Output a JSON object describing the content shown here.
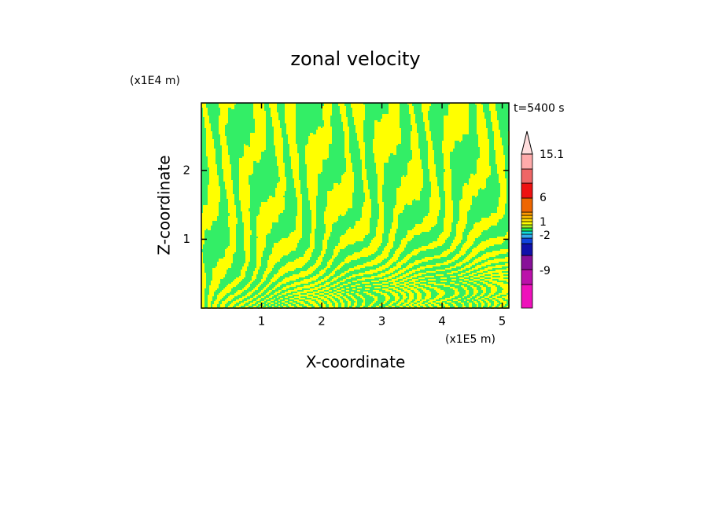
{
  "chart_data": {
    "type": "contour",
    "title": "zonal velocity",
    "time_label": "t=5400 s",
    "x_label": "X-coordinate",
    "y_label": "Z-coordinate",
    "x_unit": "(x1E5 m)",
    "y_unit": "(x1E4 m)",
    "xlim": [
      0,
      5.11
    ],
    "ylim": [
      0,
      2.98
    ],
    "xticks": [
      1,
      2,
      3,
      4,
      5
    ],
    "yticks": [
      1,
      2
    ],
    "field_colors": [
      "#33ee66",
      "#ffff00"
    ],
    "colorbar": {
      "colors": [
        "#ee11bb",
        "#bb11aa",
        "#881199",
        "#1111aa",
        "#1144dd",
        "#33aaee",
        "#11dddd",
        "#22ee55",
        "#aaee22",
        "#ffff00",
        "#ffdd00",
        "#ffbb00",
        "#ff9900",
        "#ee6600",
        "#ee1111",
        "#ee6666",
        "#ffaaaa",
        "#ffdddd"
      ],
      "ticks": [
        15.1,
        6,
        1,
        -2,
        -9
      ]
    }
  }
}
